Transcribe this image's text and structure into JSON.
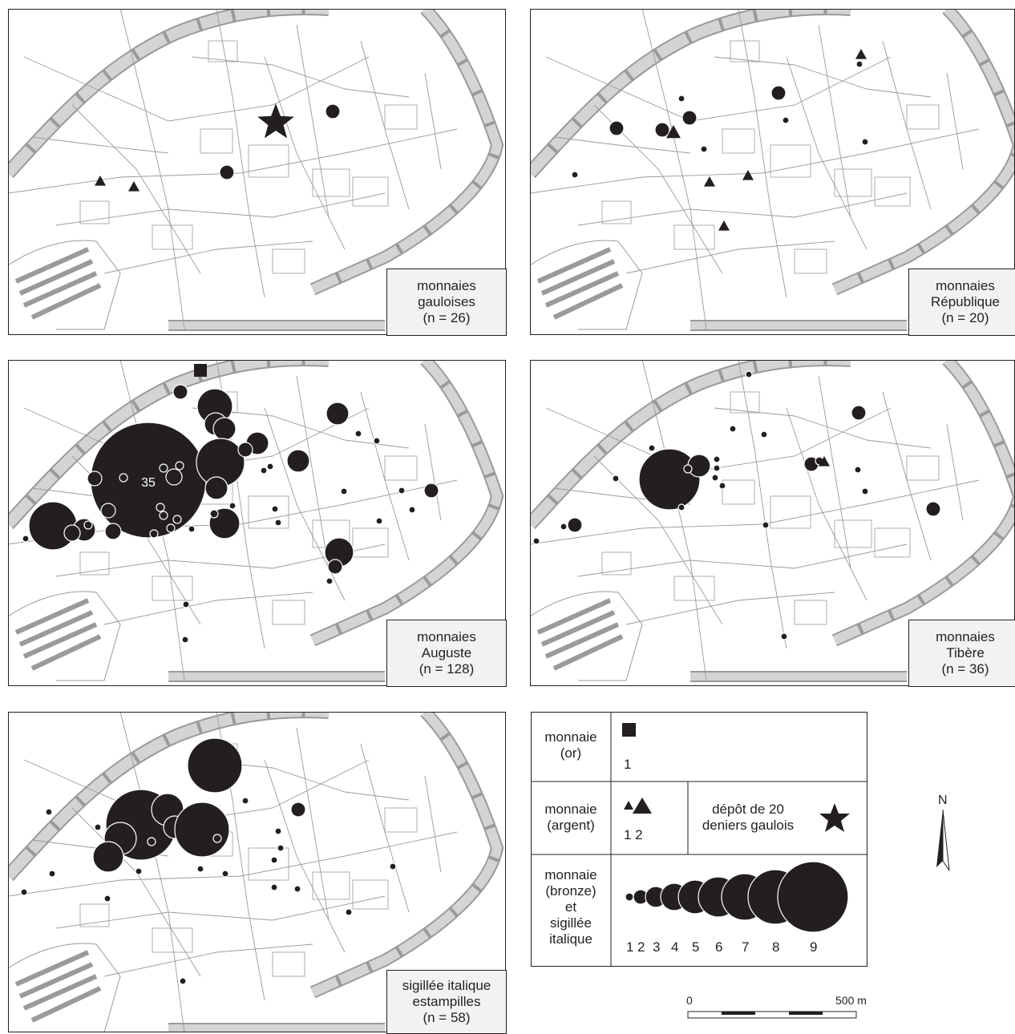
{
  "colors": {
    "street_fill": "#d4d4d4",
    "street_line": "#9a9a9a",
    "symbol": "#231f20",
    "box_fill": "#f2f2f2"
  },
  "panels": [
    {
      "lines": [
        "monnaies",
        "gauloises",
        "(n = 26)"
      ]
    },
    {
      "lines": [
        "monnaies",
        "République",
        "(n = 20)"
      ]
    },
    {
      "lines": [
        "monnaies",
        "Auguste",
        "(n = 128)"
      ],
      "annotation": "35"
    },
    {
      "lines": [
        "monnaies",
        "Tibère",
        "(n = 36)"
      ]
    },
    {
      "lines": [
        "sigillée italique",
        "estampilles",
        "(n = 58)"
      ]
    }
  ],
  "legend": {
    "gold": {
      "lines": [
        "monnaie",
        "(or)"
      ],
      "count": "1",
      "icon": "square-icon"
    },
    "silver": {
      "lines": [
        "monnaie",
        "(argent)"
      ],
      "counts": "1 2",
      "icon": "triangle-icon"
    },
    "hoard": {
      "lines": [
        "dépôt de 20",
        "deniers gaulois"
      ],
      "icon": "star-icon"
    },
    "bronze": {
      "lines": [
        "monnaie",
        "(bronze)",
        "et",
        "sigillée",
        "italique"
      ],
      "sizes": [
        "1",
        "2",
        "3",
        "4",
        "5",
        "6",
        "7",
        "8",
        "9"
      ],
      "icon": "circle-icon"
    }
  },
  "scale": {
    "start": "0",
    "end": "500 m"
  },
  "north": {
    "label": "N",
    "icon": "north-arrow-icon"
  }
}
